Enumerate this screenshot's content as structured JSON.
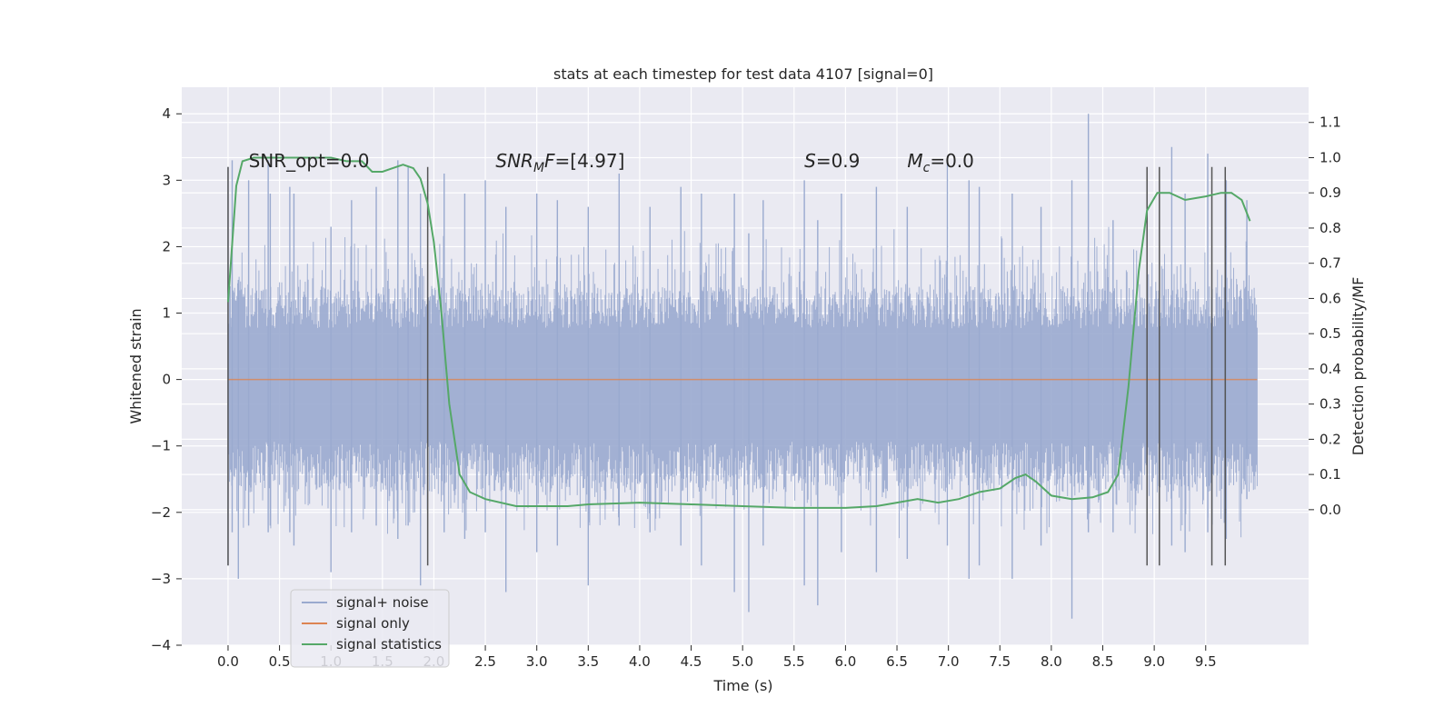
{
  "chart_data": {
    "type": "line",
    "title": "stats at each timestep for test data 4107 [signal=0]",
    "xlabel": "Time (s)",
    "ylabel": "Whitened strain",
    "y2label": "Detection probability/MF",
    "xlim": [
      -0.45,
      10.5
    ],
    "ylim": [
      -4.0,
      4.4
    ],
    "y2lim": [
      -0.385,
      1.2
    ],
    "xticks": [
      "0.0",
      "0.5",
      "1.0",
      "1.5",
      "2.0",
      "2.5",
      "3.0",
      "3.5",
      "4.0",
      "4.5",
      "5.0",
      "5.5",
      "6.0",
      "6.5",
      "7.0",
      "7.5",
      "8.0",
      "8.5",
      "9.0",
      "9.5"
    ],
    "yticks": [
      "4",
      "3",
      "2",
      "1",
      "0",
      "−1",
      "−2",
      "−3",
      "−4"
    ],
    "y2ticks": [
      "1.1",
      "1.0",
      "0.9",
      "0.8",
      "0.7",
      "0.6",
      "0.5",
      "0.4",
      "0.3",
      "0.2",
      "0.1",
      "0.0"
    ],
    "grid": true,
    "legend_position": "lower-left",
    "annotations": [
      {
        "text": "SNR_opt=0.0",
        "x": 0.2
      },
      {
        "text": "SNR_MF=[4.97]",
        "x": 2.6
      },
      {
        "text": "S=0.9",
        "x": 5.6
      },
      {
        "text": "M_c=0.0",
        "x": 6.6
      }
    ],
    "vertical_markers": [
      0.0,
      1.94,
      8.93,
      9.05,
      9.56,
      9.69
    ],
    "series": [
      {
        "name": "signal+ noise",
        "color": "#9aaacf",
        "axis": "left",
        "time_range": [
          0.0,
          10.0
        ],
        "typical_band": [
          -1.7,
          1.4
        ],
        "spikes": [
          [
            0.0,
            3.2,
            -2.8
          ],
          [
            0.04,
            3.3,
            -2.3
          ],
          [
            0.1,
            1.5,
            -3.0
          ],
          [
            0.2,
            3.0,
            -2.2
          ],
          [
            0.39,
            3.3,
            -2.3
          ],
          [
            0.41,
            2.8,
            -2.2
          ],
          [
            0.6,
            2.9,
            -2.3
          ],
          [
            0.64,
            2.8,
            -2.5
          ],
          [
            1.0,
            2.3,
            -2.9
          ],
          [
            1.2,
            2.7,
            -2.3
          ],
          [
            1.44,
            2.9,
            -2.2
          ],
          [
            1.65,
            3.3,
            -2.4
          ],
          [
            1.75,
            3.2,
            -2.2
          ],
          [
            1.87,
            2.8,
            -3.1
          ],
          [
            2.1,
            3.1,
            -2.3
          ],
          [
            2.3,
            2.8,
            -2.4
          ],
          [
            2.5,
            3.0,
            -2.3
          ],
          [
            2.7,
            2.6,
            -3.2
          ],
          [
            3.0,
            2.8,
            -2.6
          ],
          [
            3.2,
            2.7,
            -2.5
          ],
          [
            3.5,
            2.6,
            -3.1
          ],
          [
            3.8,
            3.1,
            -2.2
          ],
          [
            4.1,
            2.6,
            -2.3
          ],
          [
            4.4,
            2.9,
            -2.5
          ],
          [
            4.6,
            2.8,
            -2.8
          ],
          [
            4.92,
            2.8,
            -3.2
          ],
          [
            5.06,
            2.2,
            -3.5
          ],
          [
            5.2,
            2.7,
            -2.5
          ],
          [
            5.6,
            3.0,
            -3.1
          ],
          [
            5.73,
            2.4,
            -3.4
          ],
          [
            5.96,
            2.8,
            -2.6
          ],
          [
            6.3,
            2.9,
            -2.9
          ],
          [
            6.6,
            2.6,
            -2.7
          ],
          [
            6.99,
            3.3,
            -2.5
          ],
          [
            7.2,
            3.0,
            -3.0
          ],
          [
            7.3,
            2.9,
            -2.8
          ],
          [
            7.62,
            2.8,
            -3.0
          ],
          [
            7.9,
            2.6,
            -2.5
          ],
          [
            8.2,
            3.0,
            -3.6
          ],
          [
            8.36,
            4.0,
            -2.3
          ],
          [
            8.6,
            2.4,
            -2.3
          ],
          [
            8.93,
            3.2,
            -2.2
          ],
          [
            9.17,
            3.5,
            -2.5
          ],
          [
            9.3,
            2.8,
            -2.6
          ],
          [
            9.52,
            3.4,
            -2.3
          ],
          [
            9.7,
            3.0,
            -2.4
          ],
          [
            9.9,
            2.7,
            -1.8
          ]
        ]
      },
      {
        "name": "signal only",
        "color": "#dd8452",
        "axis": "left",
        "x": [
          0.0,
          10.0
        ],
        "y": [
          0.0,
          0.0
        ]
      },
      {
        "name": "signal statistics",
        "color": "#55a868",
        "axis": "right",
        "x": [
          0.0,
          0.08,
          0.14,
          0.25,
          0.5,
          1.0,
          1.15,
          1.3,
          1.4,
          1.5,
          1.6,
          1.7,
          1.8,
          1.87,
          1.94,
          2.0,
          2.07,
          2.15,
          2.25,
          2.35,
          2.5,
          2.8,
          3.0,
          3.3,
          3.5,
          4.0,
          4.5,
          5.0,
          5.5,
          6.0,
          6.3,
          6.5,
          6.7,
          6.9,
          7.1,
          7.3,
          7.5,
          7.65,
          7.75,
          7.85,
          8.0,
          8.2,
          8.4,
          8.55,
          8.65,
          8.75,
          8.85,
          8.93,
          9.03,
          9.15,
          9.3,
          9.5,
          9.65,
          9.75,
          9.85,
          9.93
        ],
        "y": [
          0.59,
          0.92,
          0.99,
          1.0,
          1.0,
          1.0,
          0.99,
          0.99,
          0.96,
          0.96,
          0.97,
          0.98,
          0.97,
          0.94,
          0.87,
          0.76,
          0.57,
          0.3,
          0.1,
          0.05,
          0.03,
          0.01,
          0.01,
          0.01,
          0.015,
          0.02,
          0.015,
          0.01,
          0.005,
          0.005,
          0.01,
          0.02,
          0.03,
          0.02,
          0.03,
          0.05,
          0.06,
          0.09,
          0.1,
          0.08,
          0.04,
          0.03,
          0.035,
          0.05,
          0.1,
          0.35,
          0.68,
          0.85,
          0.9,
          0.9,
          0.88,
          0.89,
          0.9,
          0.9,
          0.88,
          0.82
        ]
      }
    ]
  }
}
